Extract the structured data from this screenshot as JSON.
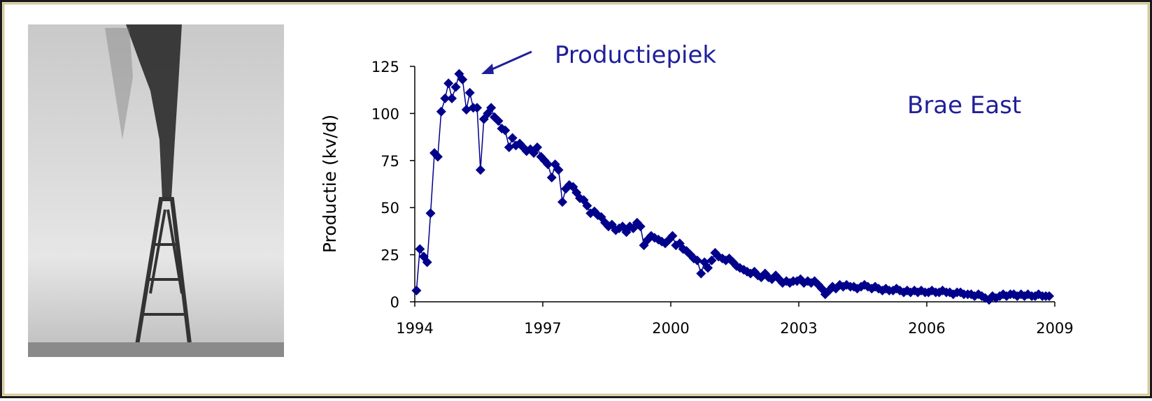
{
  "chart_data": {
    "type": "line",
    "ylabel": "Productie (kv/d)",
    "annotations": [
      "Productiepiek",
      "Brae East"
    ],
    "color": "#00008b",
    "xlim": [
      1994,
      2009
    ],
    "xticks": [
      1994,
      1997,
      2000,
      2003,
      2006,
      2009
    ],
    "ylim": [
      0,
      125
    ],
    "yticks": [
      0,
      25,
      50,
      75,
      100,
      125
    ],
    "x": [
      1994.04,
      1994.12,
      1994.21,
      1994.29,
      1994.37,
      1994.46,
      1994.54,
      1994.62,
      1994.71,
      1994.79,
      1994.87,
      1994.96,
      1995.04,
      1995.12,
      1995.21,
      1995.29,
      1995.37,
      1995.46,
      1995.54,
      1995.62,
      1995.71,
      1995.79,
      1995.87,
      1995.96,
      1996.04,
      1996.12,
      1996.21,
      1996.29,
      1996.37,
      1996.46,
      1996.54,
      1996.62,
      1996.71,
      1996.79,
      1996.87,
      1996.96,
      1997.04,
      1997.12,
      1997.21,
      1997.29,
      1997.37,
      1997.46,
      1997.54,
      1997.62,
      1997.71,
      1997.79,
      1997.87,
      1997.96,
      1998.04,
      1998.12,
      1998.21,
      1998.29,
      1998.37,
      1998.46,
      1998.54,
      1998.62,
      1998.71,
      1998.79,
      1998.87,
      1998.96,
      1999.04,
      1999.12,
      1999.21,
      1999.29,
      1999.37,
      1999.46,
      1999.54,
      1999.62,
      1999.71,
      1999.79,
      1999.87,
      1999.96,
      2000.04,
      2000.12,
      2000.21,
      2000.29,
      2000.37,
      2000.46,
      2000.54,
      2000.62,
      2000.71,
      2000.79,
      2000.87,
      2000.96,
      2001.04,
      2001.12,
      2001.21,
      2001.29,
      2001.37,
      2001.46,
      2001.54,
      2001.62,
      2001.71,
      2001.79,
      2001.87,
      2001.96,
      2002.04,
      2002.12,
      2002.21,
      2002.29,
      2002.37,
      2002.46,
      2002.54,
      2002.62,
      2002.71,
      2002.79,
      2002.87,
      2002.96,
      2003.04,
      2003.12,
      2003.21,
      2003.29,
      2003.37,
      2003.46,
      2003.54,
      2003.62,
      2003.71,
      2003.79,
      2003.87,
      2003.96,
      2004.04,
      2004.12,
      2004.21,
      2004.29,
      2004.37,
      2004.46,
      2004.54,
      2004.62,
      2004.71,
      2004.79,
      2004.87,
      2004.96,
      2005.04,
      2005.12,
      2005.21,
      2005.29,
      2005.37,
      2005.46,
      2005.54,
      2005.62,
      2005.71,
      2005.79,
      2005.87,
      2005.96,
      2006.04,
      2006.12,
      2006.21,
      2006.29,
      2006.37,
      2006.46,
      2006.54,
      2006.62,
      2006.71,
      2006.79,
      2006.87,
      2006.96,
      2007.04,
      2007.12,
      2007.21,
      2007.29,
      2007.37,
      2007.46,
      2007.54,
      2007.62,
      2007.71,
      2007.79,
      2007.87,
      2007.96,
      2008.04,
      2008.12,
      2008.21,
      2008.29,
      2008.37,
      2008.46,
      2008.54,
      2008.62,
      2008.71,
      2008.79,
      2008.87
    ],
    "values": [
      6,
      28,
      24,
      21,
      47,
      79,
      77,
      101,
      108,
      116,
      108,
      114,
      121,
      118,
      102,
      111,
      103,
      103,
      70,
      97,
      100,
      103,
      98,
      96,
      92,
      91,
      82,
      87,
      83,
      84,
      82,
      80,
      81,
      79,
      82,
      77,
      75,
      73,
      66,
      73,
      70,
      53,
      60,
      62,
      61,
      58,
      55,
      54,
      51,
      47,
      48,
      46,
      45,
      42,
      40,
      41,
      38,
      39,
      40,
      37,
      40,
      39,
      42,
      40,
      30,
      33,
      35,
      34,
      33,
      32,
      31,
      33,
      35,
      30,
      31,
      28,
      27,
      25,
      23,
      22,
      15,
      21,
      18,
      22,
      26,
      24,
      23,
      22,
      23,
      21,
      19,
      18,
      17,
      16,
      15,
      16,
      14,
      13,
      15,
      13,
      12,
      14,
      12,
      10,
      11,
      10,
      11,
      11,
      12,
      10,
      11,
      10,
      11,
      9,
      7,
      4,
      6,
      8,
      7,
      9,
      8,
      9,
      8,
      8,
      7,
      8,
      9,
      8,
      7,
      8,
      7,
      6,
      7,
      6,
      6,
      7,
      6,
      5,
      6,
      5,
      6,
      5,
      6,
      5,
      5,
      6,
      5,
      5,
      6,
      5,
      5,
      4,
      5,
      5,
      4,
      4,
      4,
      3,
      4,
      3,
      2,
      1,
      3,
      2,
      3,
      4,
      3,
      4,
      4,
      3,
      4,
      3,
      4,
      3,
      3,
      4,
      3,
      3,
      3
    ]
  }
}
